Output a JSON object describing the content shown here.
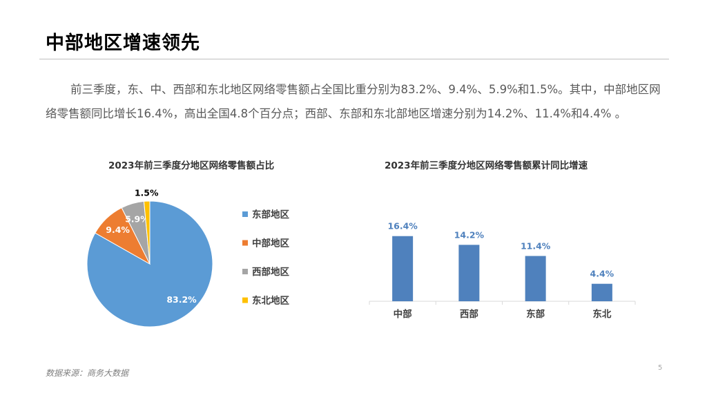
{
  "page": {
    "title": "中部地区增速领先",
    "paragraph": "前三季度，东、中、西部和东北地区网络零售额占全国比重分别为83.2%、9.4%、5.9%和1.5%。其中，中部地区网络零售额同比增长16.4%，高出全国4.8个百分点；西部、东部和东北部地区增速分别为14.2%、11.4%和4.4% 。",
    "source": "数据来源：商务大数据",
    "page_number": "5"
  },
  "colors": {
    "east": "#5b9bd5",
    "central": "#ed7d31",
    "west": "#a5a5a5",
    "northeast": "#ffc000",
    "bar": "#4f81bd",
    "bar_label": "#4f81bd"
  },
  "chart_data": [
    {
      "type": "pie",
      "title": "2023年前三季度分地区网络零售额占比",
      "labels": [
        "东部地区",
        "中部地区",
        "西部地区",
        "东北地区"
      ],
      "values": [
        83.2,
        9.4,
        5.9,
        1.5
      ],
      "value_labels": [
        "83.2%",
        "9.4%",
        "5.9%",
        "1.5%"
      ],
      "legend_position": "right"
    },
    {
      "type": "bar",
      "title": "2023年前三季度分地区网络零售额累计同比增速",
      "categories": [
        "中部",
        "西部",
        "东部",
        "东北"
      ],
      "values": [
        16.4,
        14.2,
        11.4,
        4.4
      ],
      "value_labels": [
        "16.4%",
        "14.2%",
        "11.4%",
        "4.4%"
      ],
      "ylim": [
        0,
        20
      ],
      "grid": false
    }
  ]
}
